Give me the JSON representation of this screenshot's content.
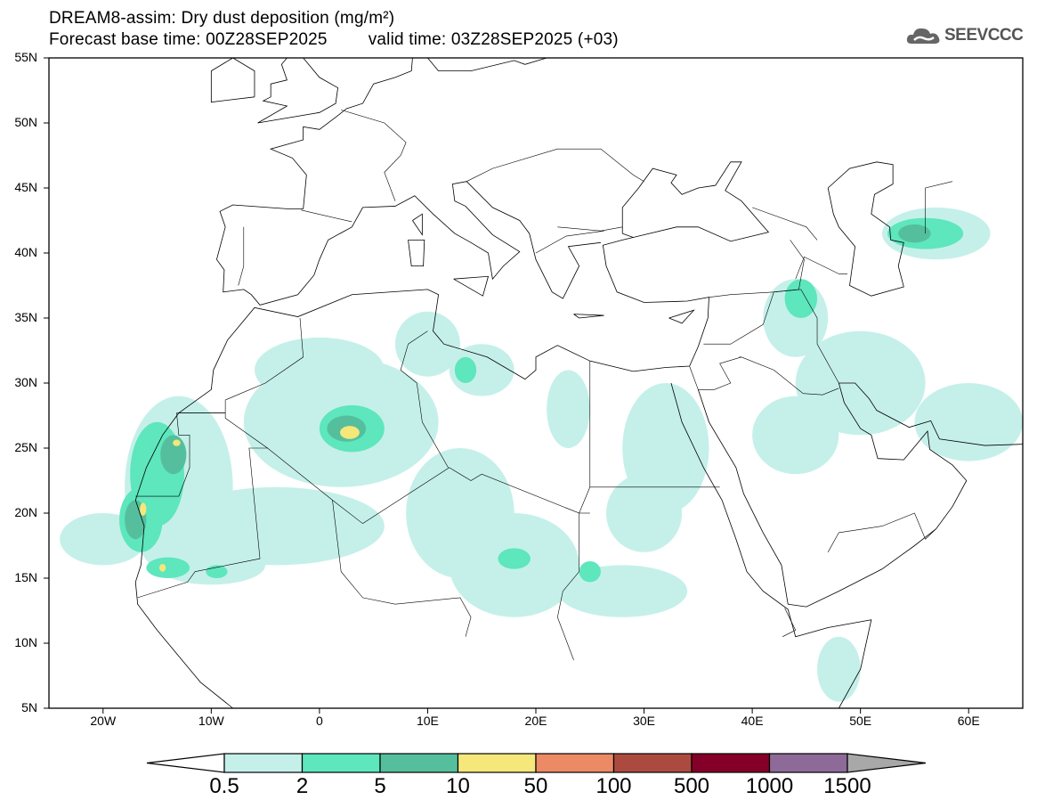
{
  "header": {
    "title": "DREAM8-assim: Dry dust deposition (mg/m²)",
    "base_time": "Forecast base time: 00Z28SEP2025",
    "valid_time": "valid time: 03Z28SEP2025 (+03)"
  },
  "logo": {
    "text": "SEEVCCC",
    "icon": "cloud-icon"
  },
  "map": {
    "lon_range": [
      -25,
      65
    ],
    "lat_range": [
      5,
      55
    ],
    "lat_labels": [
      "5N",
      "10N",
      "15N",
      "20N",
      "25N",
      "30N",
      "35N",
      "40N",
      "45N",
      "50N",
      "55N"
    ],
    "lon_labels": [
      "20W",
      "10W",
      "0",
      "10E",
      "20E",
      "30E",
      "40E",
      "50E",
      "60E"
    ]
  },
  "colorbar": {
    "labels": [
      "0.5",
      "2",
      "5",
      "10",
      "50",
      "100",
      "500",
      "1000",
      "1500"
    ],
    "colors": [
      "#c5f0ea",
      "#5ee6bd",
      "#55bf9d",
      "#f5e77a",
      "#ec8a66",
      "#ad4a40",
      "#840028",
      "#8e6a99"
    ],
    "under_color": "#ffffff",
    "over_color": "#a8a8a8"
  }
}
